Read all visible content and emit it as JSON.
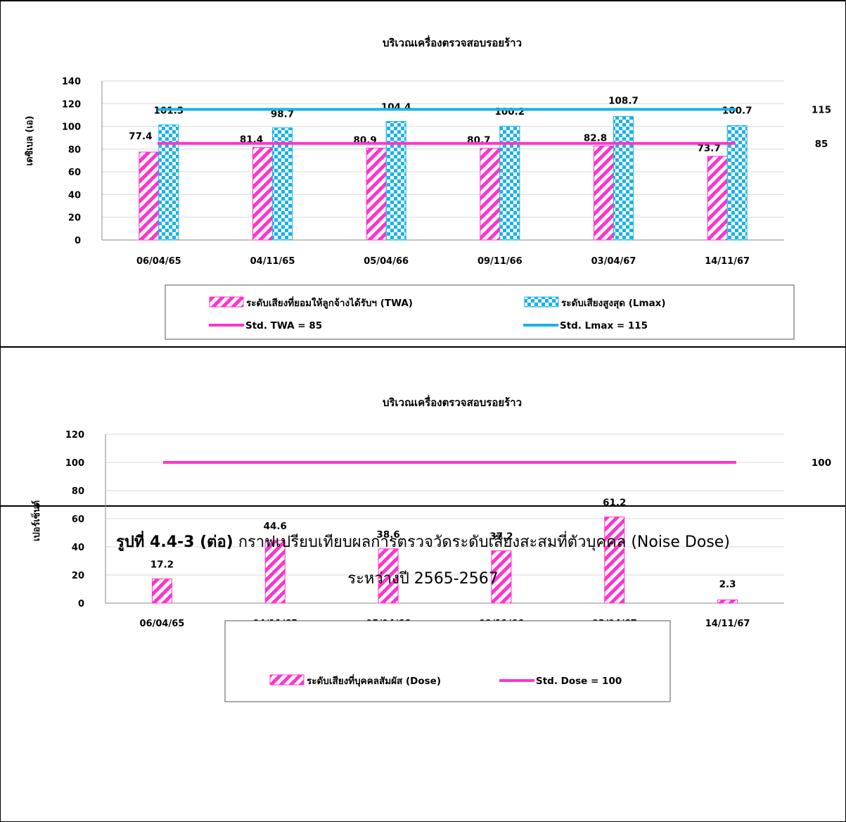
{
  "chart_data": [
    {
      "type": "bar",
      "title": "บริเวณเครื่องตรวจสอบรอยร้าว",
      "ylabel": "เดซิเบล (เอ)",
      "ylim": [
        0,
        140
      ],
      "yticks": [
        0,
        20,
        40,
        60,
        80,
        100,
        120,
        140
      ],
      "categories": [
        "06/04/65",
        "04/11/65",
        "05/04/66",
        "09/11/66",
        "03/04/67",
        "14/11/67"
      ],
      "series": [
        {
          "name": "ระดับเสียงที่ยอมให้ลูกจ้างได้รับฯ (TWA)",
          "values": [
            77.4,
            81.4,
            80.9,
            80.7,
            82.8,
            73.7
          ],
          "color": "#ff33cc",
          "pattern": "stripes"
        },
        {
          "name": "ระดับเสียงสูงสุด (Lmax)",
          "values": [
            101.3,
            98.7,
            104.4,
            100.2,
            108.7,
            100.7
          ],
          "color": "#1ab2e8",
          "pattern": "checker"
        }
      ],
      "lines": [
        {
          "name": "Std. TWA  = 85",
          "value": 85,
          "label": "85",
          "color": "#ff33cc"
        },
        {
          "name": "Std. Lmax  = 115",
          "value": 115,
          "label": "115",
          "color": "#1ab2e8"
        }
      ],
      "legend": "bottom",
      "grid": true
    },
    {
      "type": "bar",
      "title": "บริเวณเครื่องตรวจสอบรอยร้าว",
      "ylabel": "เปอร์เซ็นต์",
      "ylim": [
        0,
        120
      ],
      "yticks": [
        0,
        20,
        40,
        60,
        80,
        100,
        120
      ],
      "categories": [
        "06/04/65",
        "04/11/65",
        "05/04/66",
        "09/11/66",
        "03/04/67",
        "14/11/67"
      ],
      "series": [
        {
          "name": "ระดับเสียงที่บุคคลสัมผัส (Dose)",
          "values": [
            17.2,
            44.6,
            38.6,
            37.2,
            61.2,
            2.3
          ],
          "color": "#ff33cc",
          "pattern": "stripes"
        }
      ],
      "lines": [
        {
          "name": "Std. Dose  = 100",
          "value": 100,
          "label": "100",
          "color": "#ff33cc"
        }
      ],
      "legend": "bottom",
      "grid": true
    }
  ],
  "caption": {
    "label": "รูปที่ 4.4-3 (ต่อ)",
    "text": " กราฟเปรียบเทียบผลการตรวจวัดระดับเสียงสะสมที่ตัวบุคคล (Noise Dose)",
    "line2": "ระหว่างปี 2565-2567"
  }
}
